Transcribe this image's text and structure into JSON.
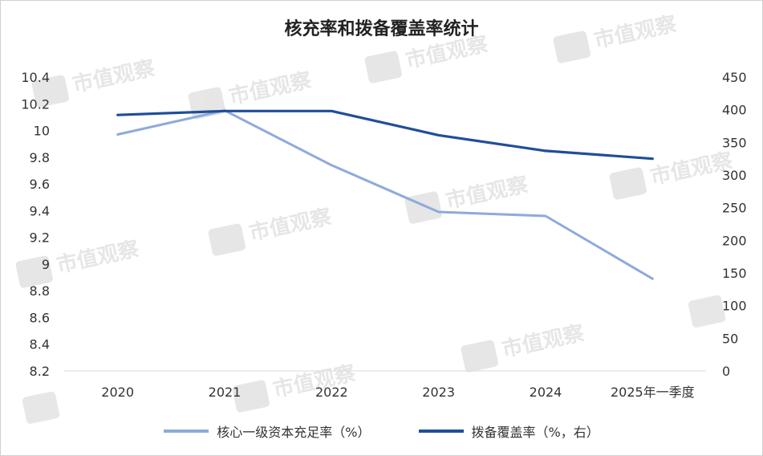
{
  "chart_data": {
    "type": "line",
    "title": "核充率和拨备覆盖率统计",
    "categories": [
      "2020",
      "2021",
      "2022",
      "2023",
      "2024",
      "2025年一季度"
    ],
    "y_left": {
      "ticks": [
        "10.4",
        "10.2",
        "10",
        "9.8",
        "9.6",
        "9.4",
        "9.2",
        "9",
        "8.8",
        "8.6",
        "8.4",
        "8.2"
      ],
      "ylim": [
        8.2,
        10.4
      ]
    },
    "y_right": {
      "ticks": [
        "450",
        "400",
        "350",
        "300",
        "250",
        "200",
        "150",
        "100",
        "50",
        "0"
      ],
      "ylim": [
        0,
        450
      ]
    },
    "series": [
      {
        "name": "核心一级资本充足率（%）",
        "axis": "left",
        "color": "#8EAADB",
        "values": [
          9.97,
          10.15,
          9.74,
          9.39,
          9.36,
          8.89
        ]
      },
      {
        "name": "拨备覆盖率（%，右）",
        "axis": "right",
        "color": "#1F4E99",
        "values": [
          392,
          398,
          398,
          361,
          337,
          325
        ]
      }
    ],
    "grid": false,
    "legend": "bottom"
  },
  "watermark": {
    "text": "市值观察"
  }
}
